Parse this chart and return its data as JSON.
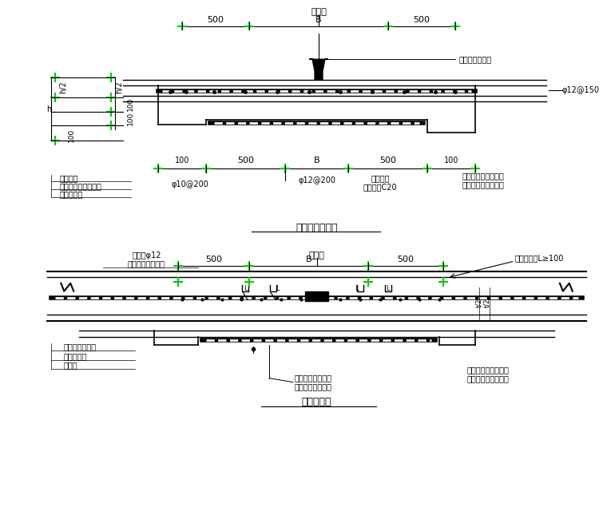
{
  "bg_color": "#ffffff",
  "line_color": "#000000",
  "green_color": "#00cc00",
  "thick_line": 2.5,
  "thin_line": 1.0,
  "medium_line": 1.5,
  "fig_width": 7.6,
  "fig_height": 6.45,
  "top_title": "后浇带",
  "top_label_500_left": "500",
  "top_label_B": "B",
  "top_label_500_right": "500",
  "top_annot_water_strip": "遇水膨胀止水条",
  "top_annot_phi12": "φ12@150",
  "bottom_label1": "基础底板",
  "bottom_label2": "基础防水层及保护层",
  "bottom_label3": "混凝土垫层",
  "bottom_annot_phi10": "φ10@200",
  "bottom_annot_phi12_200": "φ12@200",
  "bottom_annot_cushion": "垫层加厚\n强度等级C20",
  "bottom_annot_waterproof": "增设附加防水层一道\n位于基础防水层上面",
  "bottom_section_title": "基础底板后浇带",
  "dim_h": "h",
  "dim_h2_top": "h/2",
  "dim_h2_bot": "h/2",
  "dim_100_top": "100",
  "dim_100_mid": "100",
  "dim_100_bot": "100",
  "dim_100_right": "100",
  "dim_500_bot_left": "500",
  "dim_B_bot": "B",
  "dim_500_bot_right": "500",
  "wall_title": "后浇带",
  "wall_annot_add_bar": "附加筋φ12\n与水平筋间隔布置",
  "wall_dim_500_left": "500",
  "wall_dim_B": "B",
  "wall_dim_500_right": "500",
  "wall_annot_steel_strip": "钢板止水带L≥100",
  "wall_label1": "钢筋混凝土外墙",
  "wall_label2": "外墙防水层",
  "wall_label3": "保护层",
  "wall_annot_template": "非粘土实心砖墙或\n预制钢筋混凝土板",
  "wall_annot_extra_waterproof": "增设附加防水层一道\n位于外墙防水层内侧",
  "wall_section_title": "外墙后浇带"
}
